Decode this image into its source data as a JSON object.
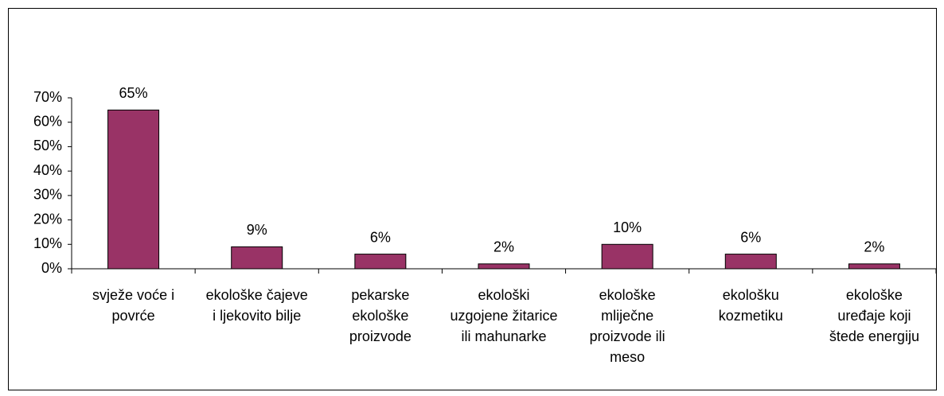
{
  "chart_data": {
    "type": "bar",
    "categories": [
      "svježe voće i povrće",
      "ekološke čajeve i ljekovito bilje",
      "pekarske ekološke proizvode",
      "ekološki uzgojene žitarice ili mahunarke",
      "ekološke mliječne proizvode ili meso",
      "ekološku kozmetiku",
      "ekološke uređaje koji štede energiju"
    ],
    "values": [
      65,
      9,
      6,
      2,
      10,
      6,
      2
    ],
    "value_labels": [
      "65%",
      "9%",
      "6%",
      "2%",
      "10%",
      "6%",
      "2%"
    ],
    "color": "#993366",
    "ylim": [
      0,
      70
    ],
    "yticks": [
      {
        "value": 0,
        "label": "0%"
      },
      {
        "value": 10,
        "label": "10%"
      },
      {
        "value": 20,
        "label": "20%"
      },
      {
        "value": 30,
        "label": "30%"
      },
      {
        "value": 40,
        "label": "40%"
      },
      {
        "value": 50,
        "label": "50%"
      },
      {
        "value": 60,
        "label": "60%"
      },
      {
        "value": 70,
        "label": "70%"
      }
    ],
    "grid": false
  }
}
